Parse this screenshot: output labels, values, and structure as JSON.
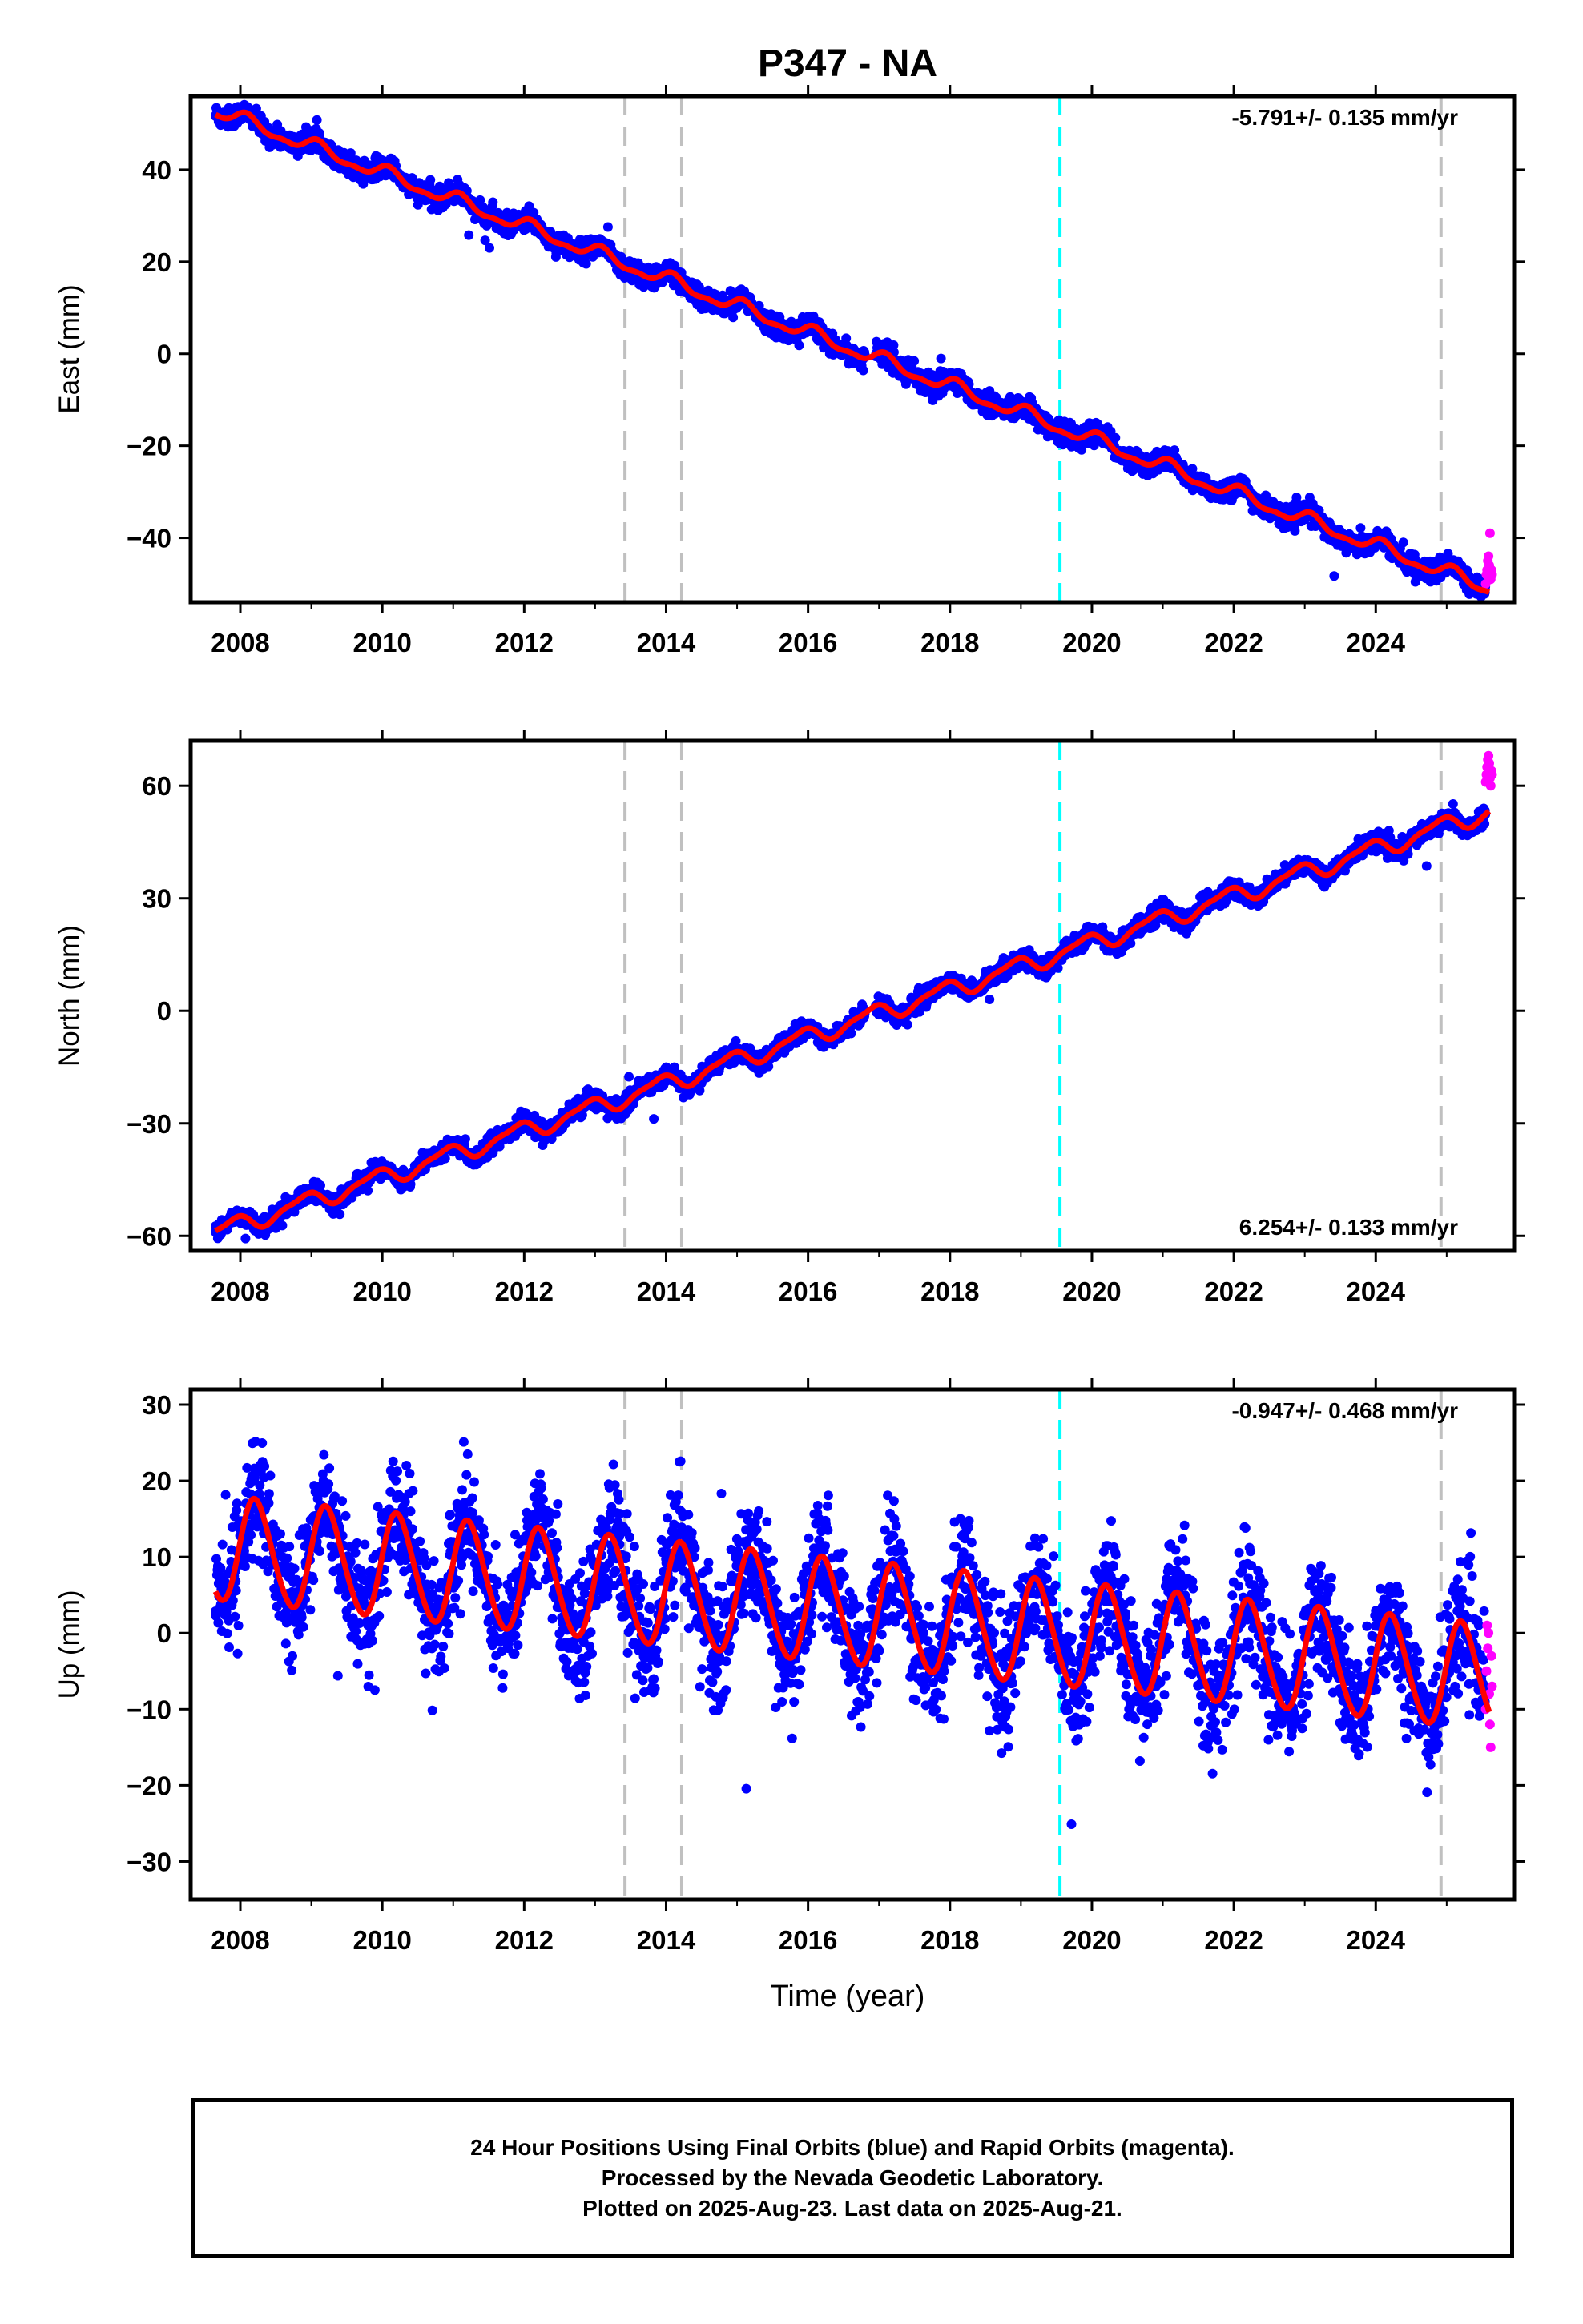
{
  "title": "P347 - NA",
  "xlabel": "Time (year)",
  "caption": {
    "line1": "24 Hour Positions Using Final Orbits (blue) and Rapid Orbits (magenta).",
    "line2": "Processed by the Nevada Geodetic Laboratory.",
    "line3": "Plotted on 2025-Aug-23. Last data on 2025-Aug-21."
  },
  "colors": {
    "final": "#0000ff",
    "rapid": "#ff00ff",
    "model": "#ff0000",
    "equipment_line": "#c0c0c0",
    "event_line": "#00ffff"
  },
  "chart_data": [
    {
      "type": "scatter",
      "component": "east",
      "ylabel": "East (mm)",
      "rate_label": "-5.791+/- 0.135 mm/yr",
      "rate_position": "top-right",
      "xlim": [
        2007.3,
        2025.95
      ],
      "ylim": [
        -54,
        56
      ],
      "xticks": [
        "2008",
        "2010",
        "2012",
        "2014",
        "2016",
        "2018",
        "2020",
        "2022",
        "2024"
      ],
      "yticks": [
        "40",
        "20",
        "0",
        "−20",
        "−40"
      ],
      "ytick_values": [
        40,
        20,
        0,
        -20,
        -40
      ],
      "model": {
        "ref_epoch": 2016.7,
        "offset": 0.5,
        "rate": -5.791,
        "annual_amp": 1.4,
        "annual_phase": 1.0,
        "semiannual_amp": 0.6,
        "semiannual_phase": 0.5
      },
      "scatter": 1.1,
      "time_range": [
        2007.65,
        2025.55
      ],
      "rapid_range": [
        2025.55,
        2025.64
      ],
      "rapid_values": [
        -50,
        -48,
        -47,
        -45,
        -44,
        -46,
        -39,
        -49,
        -47,
        -48
      ],
      "vlines": [
        {
          "x": 2013.42,
          "kind": "equipment"
        },
        {
          "x": 2014.22,
          "kind": "equipment"
        },
        {
          "x": 2019.55,
          "kind": "event"
        },
        {
          "x": 2024.92,
          "kind": "equipment"
        }
      ]
    },
    {
      "type": "scatter",
      "component": "north",
      "ylabel": "North (mm)",
      "rate_label": "6.254+/- 0.133 mm/yr",
      "rate_position": "bottom-right",
      "xlim": [
        2007.3,
        2025.95
      ],
      "ylim": [
        -64,
        72
      ],
      "xticks": [
        "2008",
        "2010",
        "2012",
        "2014",
        "2016",
        "2018",
        "2020",
        "2022",
        "2024"
      ],
      "yticks": [
        "60",
        "30",
        "0",
        "−30",
        "−60"
      ],
      "ytick_values": [
        60,
        30,
        0,
        -30,
        -60
      ],
      "model": {
        "ref_epoch": 2016.7,
        "offset": -2.5,
        "rate": 6.254,
        "annual_amp": 2.2,
        "annual_phase": 2.3,
        "semiannual_amp": 0.7,
        "semiannual_phase": 1.0
      },
      "scatter": 1.2,
      "time_range": [
        2007.65,
        2025.55
      ],
      "rapid_range": [
        2025.55,
        2025.64
      ],
      "rapid_values": [
        61,
        63,
        65,
        67,
        68,
        66,
        62,
        60,
        64,
        63
      ],
      "vlines": [
        {
          "x": 2013.42,
          "kind": "equipment"
        },
        {
          "x": 2014.22,
          "kind": "equipment"
        },
        {
          "x": 2019.55,
          "kind": "event"
        },
        {
          "x": 2024.92,
          "kind": "equipment"
        }
      ]
    },
    {
      "type": "scatter",
      "component": "up",
      "ylabel": "Up (mm)",
      "rate_label": "-0.947+/- 0.468 mm/yr",
      "rate_position": "top-right",
      "xlim": [
        2007.3,
        2025.95
      ],
      "ylim": [
        -35,
        32
      ],
      "xticks": [
        "2008",
        "2010",
        "2012",
        "2014",
        "2016",
        "2018",
        "2020",
        "2022",
        "2024"
      ],
      "yticks": [
        "30",
        "20",
        "10",
        "0",
        "−10",
        "−20",
        "−30"
      ],
      "ytick_values": [
        30,
        20,
        10,
        0,
        -10,
        -20,
        -30
      ],
      "model": {
        "ref_epoch": 2016.7,
        "offset": 2.5,
        "rate": -0.947,
        "annual_amp": 6.8,
        "annual_phase": 0.2,
        "semiannual_amp": 0.6,
        "semiannual_phase": 0.0
      },
      "scatter": 3.8,
      "time_range": [
        2007.65,
        2025.55
      ],
      "rapid_range": [
        2025.55,
        2025.64
      ],
      "rapid_values": [
        -10,
        -5,
        1,
        -2,
        0,
        -8,
        -12,
        -15,
        -3,
        -7
      ],
      "vlines": [
        {
          "x": 2013.42,
          "kind": "equipment"
        },
        {
          "x": 2014.22,
          "kind": "equipment"
        },
        {
          "x": 2019.55,
          "kind": "event"
        },
        {
          "x": 2024.92,
          "kind": "equipment"
        }
      ]
    }
  ]
}
